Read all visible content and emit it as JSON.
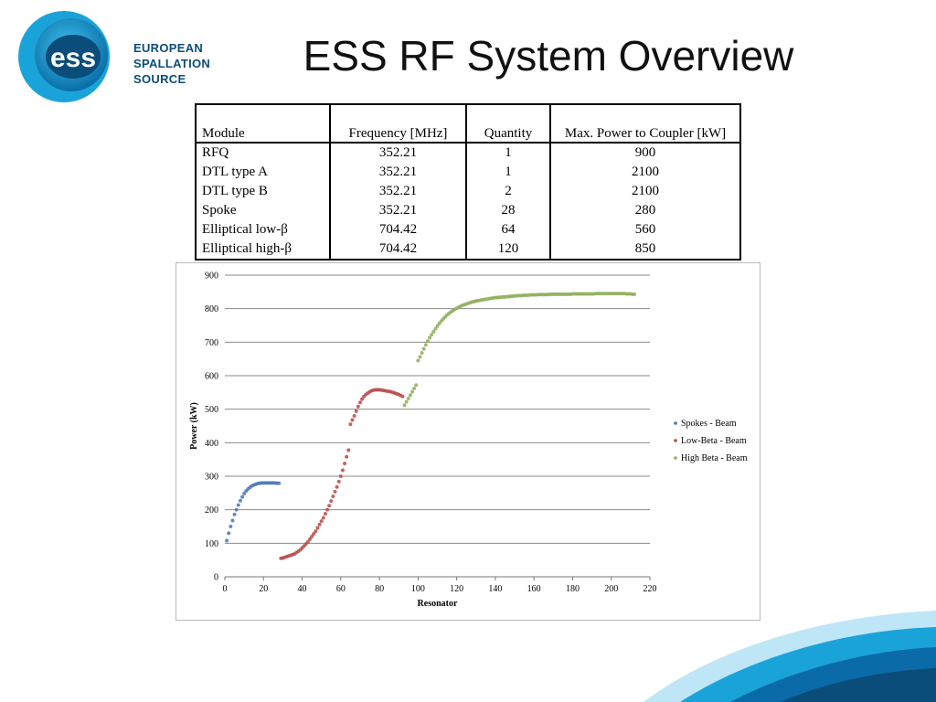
{
  "slide": {
    "title": "ESS RF System Overview",
    "logo_lines": [
      "EUROPEAN",
      "SPALLATION",
      "SOURCE"
    ],
    "logo_mark": "ess"
  },
  "table": {
    "headers": [
      "Module",
      "Frequency [MHz]",
      "Quantity",
      "Max. Power to Coupler [kW]"
    ],
    "rows": [
      [
        "RFQ",
        "352.21",
        "1",
        "900"
      ],
      [
        "DTL type A",
        "352.21",
        "1",
        "2100"
      ],
      [
        "DTL type B",
        "352.21",
        "2",
        "2100"
      ],
      [
        "Spoke",
        "352.21",
        "28",
        "280"
      ],
      [
        "Elliptical low-β",
        "704.42",
        "64",
        "560"
      ],
      [
        "Elliptical high-β",
        "704.42",
        "120",
        "850"
      ]
    ]
  },
  "colors": {
    "spokes": "#4a76b8",
    "low_beta": "#b84a4a",
    "high_beta": "#8fae5a",
    "brand": "#0b4d7a",
    "accent": "#1aa3d9"
  },
  "chart_data": {
    "type": "scatter",
    "xlabel": "Resonator",
    "ylabel": "Power (kW)",
    "xlim": [
      0,
      220
    ],
    "ylim": [
      0,
      900
    ],
    "xticks": [
      0,
      20,
      40,
      60,
      80,
      100,
      120,
      140,
      160,
      180,
      200,
      220
    ],
    "yticks": [
      0,
      100,
      200,
      300,
      400,
      500,
      600,
      700,
      800,
      900
    ],
    "grid": "horizontal",
    "legend_position": "right",
    "series": [
      {
        "name": "Spokes - Beam",
        "x": [
          1,
          2,
          3,
          4,
          5,
          6,
          7,
          8,
          9,
          10,
          11,
          12,
          13,
          14,
          15,
          16,
          17,
          18,
          19,
          20,
          21,
          22,
          23,
          24,
          25,
          26,
          27,
          28
        ],
        "y": [
          108,
          130,
          150,
          168,
          186,
          200,
          214,
          227,
          238,
          248,
          256,
          262,
          267,
          271,
          274,
          276,
          278,
          279,
          280,
          280,
          280,
          280,
          280,
          280,
          280,
          280,
          279,
          279
        ]
      },
      {
        "name": "Low-Beta - Beam",
        "x": [
          29,
          30,
          31,
          32,
          33,
          34,
          35,
          36,
          37,
          38,
          39,
          40,
          41,
          42,
          43,
          44,
          45,
          46,
          47,
          48,
          49,
          50,
          51,
          52,
          53,
          54,
          55,
          56,
          57,
          58,
          59,
          60,
          61,
          62,
          63,
          64,
          65,
          66,
          67,
          68,
          69,
          70,
          71,
          72,
          73,
          74,
          75,
          76,
          77,
          78,
          79,
          80,
          81,
          82,
          83,
          84,
          85,
          86,
          87,
          88,
          89,
          90,
          91,
          92
        ],
        "y": [
          55,
          56,
          58,
          60,
          62,
          64,
          66,
          68,
          72,
          76,
          80,
          86,
          92,
          98,
          104,
          112,
          120,
          128,
          136,
          146,
          156,
          166,
          176,
          188,
          200,
          212,
          226,
          240,
          254,
          268,
          284,
          300,
          318,
          338,
          358,
          378,
          455,
          468,
          480,
          494,
          508,
          520,
          530,
          538,
          544,
          548,
          552,
          555,
          557,
          558,
          558,
          558,
          557,
          556,
          555,
          554,
          553,
          552,
          550,
          548,
          546,
          544,
          541,
          538
        ]
      },
      {
        "name": "High Beta - Beam",
        "x": [
          93,
          94,
          95,
          96,
          97,
          98,
          99,
          100,
          101,
          102,
          103,
          104,
          105,
          106,
          107,
          108,
          109,
          110,
          111,
          112,
          113,
          114,
          115,
          116,
          117,
          118,
          119,
          120,
          121,
          122,
          123,
          124,
          125,
          126,
          127,
          128,
          129,
          130,
          131,
          132,
          133,
          134,
          135,
          136,
          137,
          138,
          139,
          140,
          141,
          142,
          143,
          144,
          145,
          146,
          147,
          148,
          149,
          150,
          151,
          152,
          153,
          154,
          155,
          156,
          157,
          158,
          159,
          160,
          161,
          162,
          163,
          164,
          165,
          166,
          167,
          168,
          169,
          170,
          171,
          172,
          173,
          174,
          175,
          176,
          177,
          178,
          179,
          180,
          181,
          182,
          183,
          184,
          185,
          186,
          187,
          188,
          189,
          190,
          191,
          192,
          193,
          194,
          195,
          196,
          197,
          198,
          199,
          200,
          201,
          202,
          203,
          204,
          205,
          206,
          207,
          208,
          209,
          210,
          211,
          212
        ],
        "y": [
          512,
          522,
          532,
          542,
          552,
          562,
          572,
          645,
          656,
          668,
          680,
          692,
          703,
          713,
          722,
          731,
          740,
          748,
          756,
          763,
          769,
          775,
          781,
          786,
          790,
          794,
          798,
          801,
          804,
          807,
          810,
          812,
          814,
          816,
          818,
          820,
          821,
          823,
          824,
          825,
          826,
          827,
          828,
          829,
          830,
          831,
          832,
          833,
          833,
          834,
          834,
          835,
          835,
          836,
          836,
          837,
          837,
          838,
          838,
          839,
          839,
          839,
          840,
          840,
          840,
          841,
          841,
          841,
          841,
          842,
          842,
          842,
          842,
          842,
          842,
          843,
          843,
          843,
          843,
          843,
          843,
          843,
          843,
          843,
          843,
          843,
          843,
          844,
          844,
          844,
          844,
          844,
          844,
          844,
          844,
          844,
          844,
          844,
          844,
          845,
          845,
          845,
          845,
          845,
          845,
          845,
          845,
          845,
          845,
          845,
          845,
          845,
          845,
          845,
          845,
          844,
          844,
          844,
          843,
          843
        ]
      }
    ]
  }
}
